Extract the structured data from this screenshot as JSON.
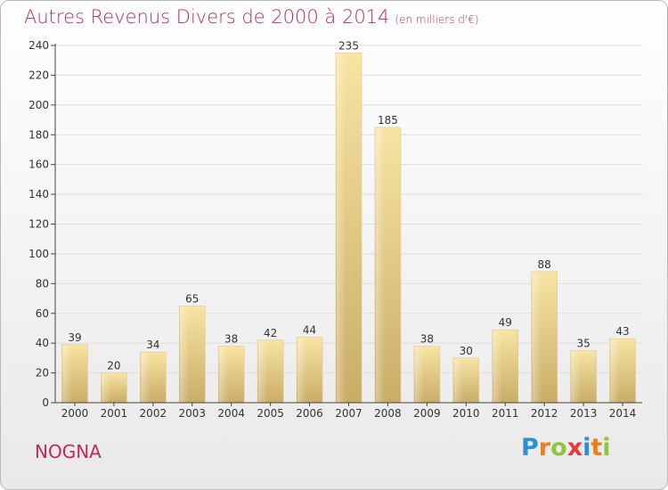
{
  "title": {
    "main": "Autres Revenus Divers de 2000 à 2014",
    "unit": "(en milliers d'€)"
  },
  "commune": "NOGNA",
  "logo": {
    "letters": [
      "P",
      "r",
      "o",
      "x",
      "i",
      "t",
      "i"
    ],
    "colors": [
      "#2f8fd4",
      "#ef7d1a",
      "#8dc63f",
      "#e53a3a",
      "#2f8fd4",
      "#ef7d1a",
      "#8dc63f"
    ]
  },
  "colors": {
    "title": "#c0285a",
    "bar_light": "#f8e4a3",
    "bar_dark": "#c9ad67",
    "grid": "#dddddd",
    "axis": "#444444"
  },
  "chart_data": {
    "type": "bar",
    "categories": [
      "2000",
      "2001",
      "2002",
      "2003",
      "2004",
      "2005",
      "2006",
      "2007",
      "2008",
      "2009",
      "2010",
      "2011",
      "2012",
      "2013",
      "2014"
    ],
    "values": [
      39,
      20,
      34,
      65,
      38,
      42,
      44,
      235,
      185,
      38,
      30,
      49,
      88,
      35,
      43
    ],
    "title": "Autres Revenus Divers de 2000 à 2014",
    "ylabel": "",
    "xlabel": "",
    "ylim": [
      0,
      240
    ],
    "yticks": [
      0,
      20,
      40,
      60,
      80,
      100,
      120,
      140,
      160,
      180,
      200,
      220,
      240
    ],
    "grid": true
  }
}
